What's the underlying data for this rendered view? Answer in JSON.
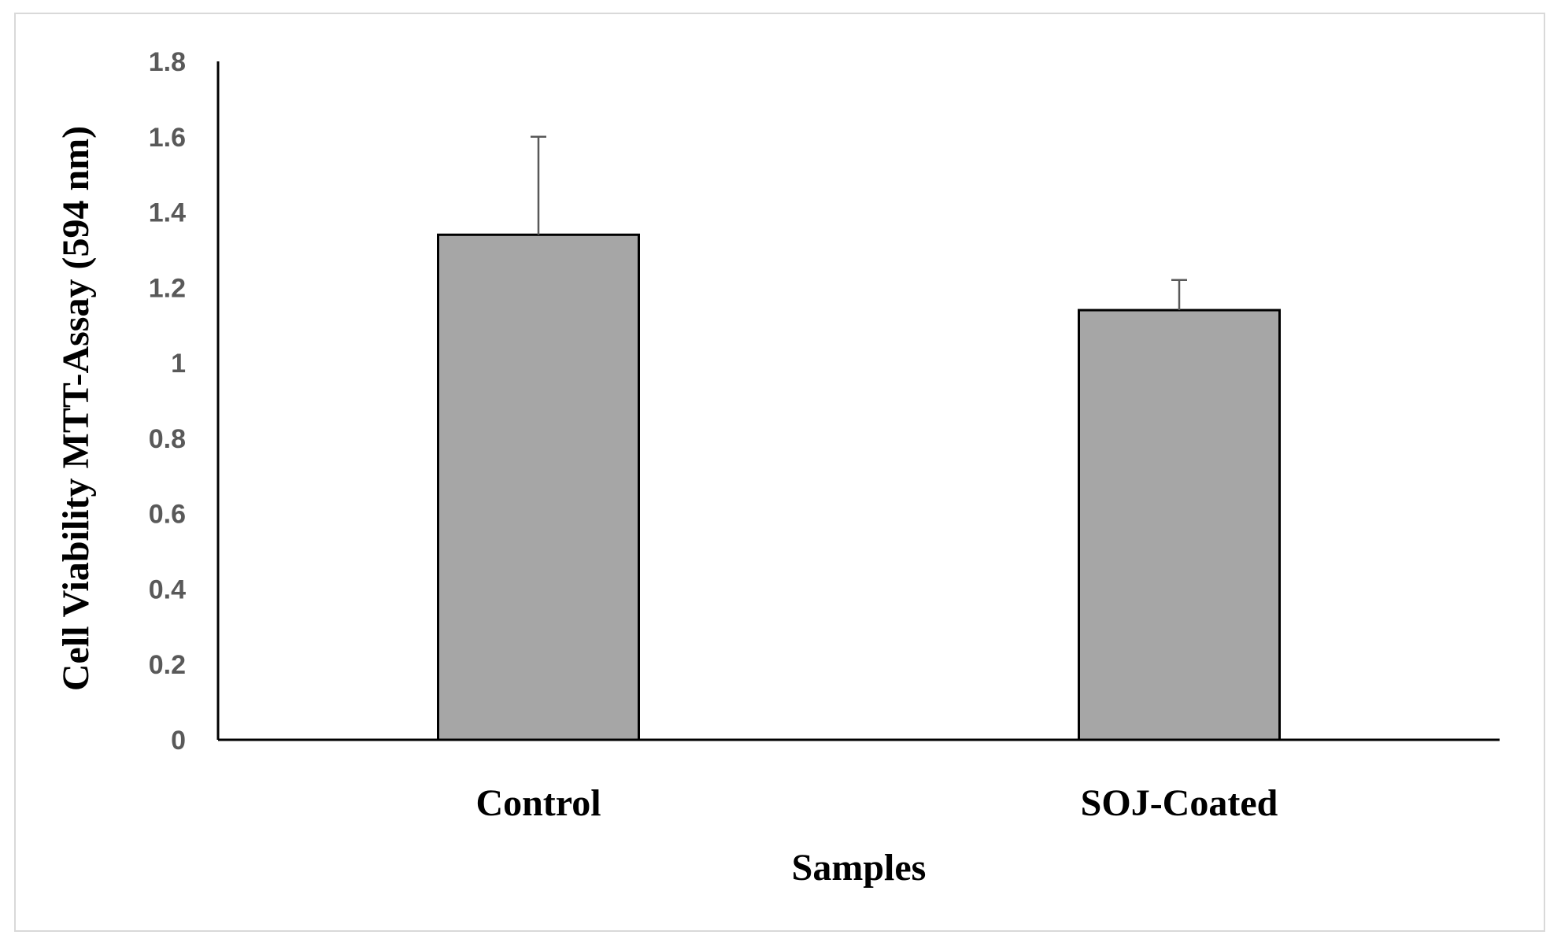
{
  "chart_data": {
    "type": "bar",
    "title": "",
    "xlabel": "Samples",
    "ylabel": "Cell Viability MTT-Assay (594 nm)",
    "categories": [
      "Control",
      "SOJ-Coated"
    ],
    "values": [
      1.34,
      1.14
    ],
    "error_upper": [
      0.26,
      0.08
    ],
    "ylim": [
      0,
      1.8
    ],
    "yticks": [
      0,
      0.2,
      0.4,
      0.6,
      0.8,
      1,
      1.2,
      1.4,
      1.6,
      1.8
    ],
    "grid": false,
    "legend": false,
    "colors": {
      "bar_fill": "#a6a6a6",
      "bar_stroke": "#000000",
      "axis": "#000000",
      "error_bar": "#595959",
      "tick_label": "#595959"
    }
  }
}
